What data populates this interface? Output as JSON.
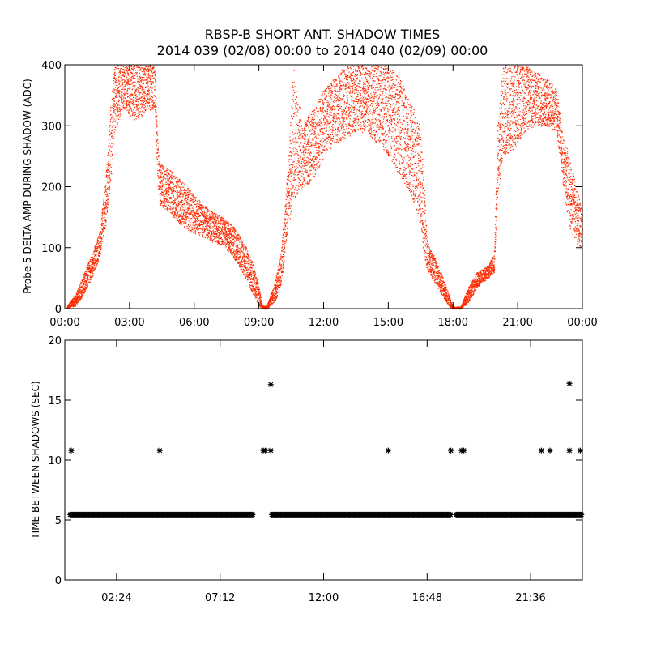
{
  "title_line1": "RBSP-B SHORT ANT. SHADOW TIMES",
  "title_line2": "2014 039 (02/08) 00:00 to 2014 040 (02/09) 00:00",
  "colors": {
    "background": "#ffffff",
    "axes": "#000000",
    "top_points": "#ff2a00",
    "bottom_markers": "#000000"
  },
  "chart_data": [
    {
      "type": "scatter",
      "ylabel": "Probe 5 DELTA AMP DURING SHADOW (ADC)",
      "xlim": [
        0,
        24
      ],
      "ylim": [
        0,
        400
      ],
      "x_ticks": [
        "00:00",
        "03:00",
        "06:00",
        "09:00",
        "12:00",
        "15:00",
        "18:00",
        "21:00",
        "00:00"
      ],
      "x_tick_hours": [
        0,
        3,
        6,
        9,
        12,
        15,
        18,
        21,
        24
      ],
      "y_ticks": [
        0,
        100,
        200,
        300,
        400
      ],
      "point_color": "#ff2a00",
      "envelope": {
        "description_hours": "approximate envelope of the dense point cloud (hour, lower, upper)",
        "points": [
          [
            0.1,
            0,
            5
          ],
          [
            0.5,
            5,
            25
          ],
          [
            0.9,
            25,
            60
          ],
          [
            1.3,
            55,
            95
          ],
          [
            1.6,
            85,
            125
          ],
          [
            1.9,
            140,
            220
          ],
          [
            2.1,
            200,
            330
          ],
          [
            2.3,
            290,
            400
          ],
          [
            2.7,
            330,
            400
          ],
          [
            3.2,
            310,
            400
          ],
          [
            3.8,
            320,
            400
          ],
          [
            4.15,
            330,
            400
          ],
          [
            4.35,
            170,
            240
          ],
          [
            4.8,
            160,
            230
          ],
          [
            5.3,
            140,
            215
          ],
          [
            5.8,
            125,
            195
          ],
          [
            6.3,
            120,
            175
          ],
          [
            6.8,
            110,
            160
          ],
          [
            7.3,
            105,
            150
          ],
          [
            7.8,
            85,
            135
          ],
          [
            8.3,
            55,
            110
          ],
          [
            8.7,
            25,
            75
          ],
          [
            9.0,
            5,
            35
          ],
          [
            9.15,
            0,
            5
          ],
          [
            9.35,
            0,
            5
          ],
          [
            9.7,
            10,
            40
          ],
          [
            10.0,
            35,
            90
          ],
          [
            10.3,
            120,
            220
          ],
          [
            10.6,
            180,
            400
          ],
          [
            11.0,
            200,
            300
          ],
          [
            11.5,
            210,
            330
          ],
          [
            12.0,
            250,
            360
          ],
          [
            12.5,
            270,
            380
          ],
          [
            13.0,
            280,
            400
          ],
          [
            13.5,
            290,
            400
          ],
          [
            14.0,
            290,
            400
          ],
          [
            14.5,
            270,
            400
          ],
          [
            15.0,
            250,
            400
          ],
          [
            15.5,
            220,
            380
          ],
          [
            16.0,
            190,
            340
          ],
          [
            16.4,
            150,
            310
          ],
          [
            16.6,
            100,
            240
          ],
          [
            16.8,
            60,
            110
          ],
          [
            17.2,
            40,
            80
          ],
          [
            17.6,
            15,
            45
          ],
          [
            17.9,
            0,
            12
          ],
          [
            18.05,
            0,
            3
          ],
          [
            18.35,
            0,
            4
          ],
          [
            18.7,
            10,
            35
          ],
          [
            19.1,
            35,
            60
          ],
          [
            19.6,
            50,
            70
          ],
          [
            19.9,
            60,
            90
          ],
          [
            20.05,
            180,
            300
          ],
          [
            20.3,
            250,
            400
          ],
          [
            20.8,
            260,
            400
          ],
          [
            21.3,
            290,
            400
          ],
          [
            21.8,
            300,
            390
          ],
          [
            22.3,
            300,
            380
          ],
          [
            22.8,
            290,
            360
          ],
          [
            23.1,
            200,
            280
          ],
          [
            23.4,
            130,
            250
          ],
          [
            23.7,
            110,
            200
          ],
          [
            24.0,
            90,
            160
          ]
        ]
      }
    },
    {
      "type": "scatter",
      "ylabel": "TIME BETWEEN SHADOWS (SEC)",
      "xlim": [
        0,
        24
      ],
      "ylim": [
        0,
        20
      ],
      "x_ticks": [
        "02:24",
        "07:12",
        "12:00",
        "16:48",
        "21:36"
      ],
      "x_tick_hours": [
        2.4,
        7.2,
        12.0,
        16.8,
        21.6
      ],
      "y_ticks": [
        0,
        5,
        10,
        15,
        20
      ],
      "marker": "asterisk",
      "baseline": {
        "value": 5.45,
        "segments_hours": [
          [
            0.25,
            8.75
          ],
          [
            9.6,
            17.9
          ],
          [
            18.15,
            23.98
          ]
        ]
      },
      "outliers": [
        {
          "x": 0.3,
          "y": 10.8
        },
        {
          "x": 4.4,
          "y": 10.8
        },
        {
          "x": 9.2,
          "y": 10.8
        },
        {
          "x": 9.3,
          "y": 10.8
        },
        {
          "x": 9.55,
          "y": 10.8
        },
        {
          "x": 9.55,
          "y": 16.3
        },
        {
          "x": 15.0,
          "y": 10.8
        },
        {
          "x": 17.9,
          "y": 10.8
        },
        {
          "x": 18.4,
          "y": 10.8
        },
        {
          "x": 18.5,
          "y": 10.8
        },
        {
          "x": 22.1,
          "y": 10.8
        },
        {
          "x": 22.5,
          "y": 10.8
        },
        {
          "x": 23.4,
          "y": 16.4
        },
        {
          "x": 23.4,
          "y": 10.8
        },
        {
          "x": 23.9,
          "y": 10.8
        }
      ]
    }
  ]
}
